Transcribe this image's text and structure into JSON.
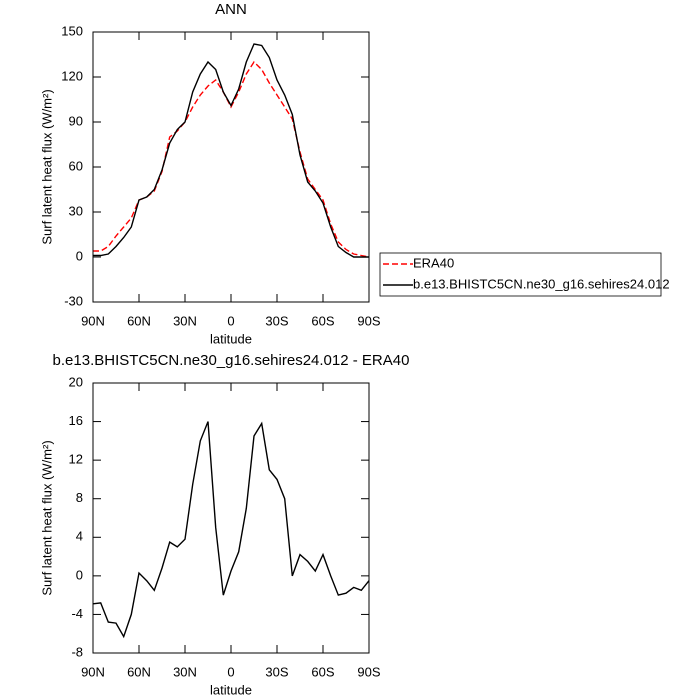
{
  "chart_data": [
    {
      "type": "line",
      "title": "ANN",
      "xlabel": "latitude",
      "ylabel": "Surf latent heat flux (W/m²)",
      "x": [
        90,
        85,
        80,
        75,
        70,
        65,
        60,
        55,
        50,
        45,
        40,
        35,
        30,
        25,
        20,
        15,
        10,
        5,
        0,
        -5,
        -10,
        -15,
        -20,
        -25,
        -30,
        -35,
        -40,
        -45,
        -50,
        -55,
        -60,
        -65,
        -70,
        -75,
        -80,
        -85,
        -90
      ],
      "series": [
        {
          "name": "ERA40",
          "color": "#ff0000",
          "dashed": true,
          "values": [
            4,
            4,
            7,
            14,
            20,
            26,
            38,
            40,
            44,
            57,
            80,
            84,
            90,
            100,
            108,
            114,
            118,
            110,
            100,
            110,
            122,
            130,
            125,
            116,
            108,
            100,
            92,
            70,
            52,
            45,
            38,
            22,
            10,
            5,
            2,
            1,
            0
          ]
        },
        {
          "name": "b.e13.BHISTC5CN.ne30_g16.sehires24.012",
          "color": "#000000",
          "dashed": false,
          "values": [
            1,
            1,
            2,
            7,
            13,
            20,
            38,
            40,
            45,
            58,
            76,
            85,
            90,
            110,
            122,
            130,
            125,
            110,
            101,
            112,
            130,
            142,
            141,
            133,
            118,
            108,
            95,
            68,
            50,
            44,
            36,
            20,
            7,
            3,
            0,
            0,
            0
          ]
        }
      ],
      "xlim": [
        90,
        -90
      ],
      "xticks": [
        {
          "value": 90,
          "label": "90N"
        },
        {
          "value": 60,
          "label": "60N"
        },
        {
          "value": 30,
          "label": "30N"
        },
        0,
        {
          "value": -30,
          "label": "30S"
        },
        {
          "value": -60,
          "label": "60S"
        },
        {
          "value": -90,
          "label": "90S"
        }
      ],
      "ylim": [
        -30,
        150
      ],
      "yticks": [
        -30,
        0,
        30,
        60,
        90,
        120,
        150
      ],
      "legend": "right"
    },
    {
      "type": "line",
      "title": "b.e13.BHISTC5CN.ne30_g16.sehires24.012 - ERA40",
      "xlabel": "latitude",
      "ylabel": "Surf latent heat flux (W/m²)",
      "x": [
        90,
        85,
        80,
        75,
        70,
        65,
        60,
        55,
        50,
        45,
        40,
        35,
        30,
        25,
        20,
        15,
        10,
        5,
        0,
        -5,
        -10,
        -15,
        -20,
        -25,
        -30,
        -35,
        -40,
        -45,
        -50,
        -55,
        -60,
        -65,
        -70,
        -75,
        -80,
        -85,
        -90
      ],
      "values": [
        -2.9,
        -2.8,
        -4.8,
        -4.9,
        -6.3,
        -4,
        0.3,
        -0.5,
        -1.5,
        0.8,
        3.5,
        3,
        3.8,
        9.5,
        14,
        16,
        5,
        -2,
        0.5,
        2.5,
        7,
        14.5,
        15.8,
        11,
        10,
        8,
        0,
        2.2,
        1.5,
        0.5,
        2.2,
        0,
        -2,
        -1.8,
        -1.2,
        -1.5,
        -0.5
      ],
      "color": "#000000",
      "xlim": [
        90,
        -90
      ],
      "xticks": [
        {
          "value": 90,
          "label": "90N"
        },
        {
          "value": 60,
          "label": "60N"
        },
        {
          "value": 30,
          "label": "30N"
        },
        0,
        {
          "value": -30,
          "label": "30S"
        },
        {
          "value": -60,
          "label": "60S"
        },
        {
          "value": -90,
          "label": "90S"
        }
      ],
      "ylim": [
        -8,
        20
      ],
      "yticks": [
        -8,
        -4,
        0,
        4,
        8,
        12,
        16,
        20
      ]
    }
  ]
}
